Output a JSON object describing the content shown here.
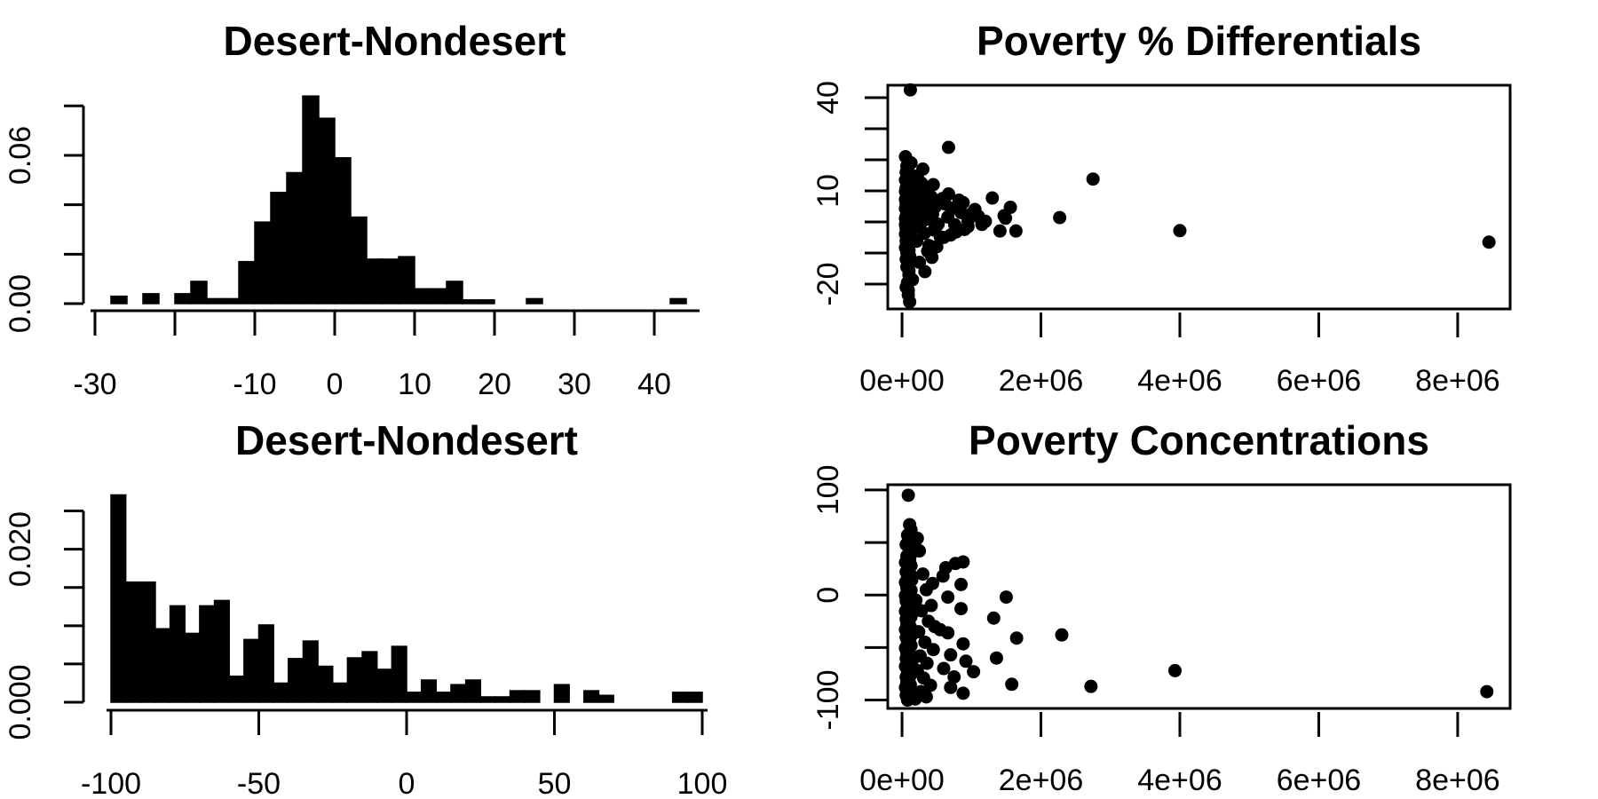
{
  "page": {
    "background": "#ffffff",
    "ink": "#000000"
  },
  "chart_data": [
    {
      "id": "histogram-desert-nondesert-top",
      "type": "bar",
      "title": "Desert-Nondesert",
      "xlabel": "",
      "ylabel": "",
      "bin_start": -30,
      "bin_width": 2,
      "densities": [
        0,
        0.003,
        0,
        0.004,
        0,
        0.004,
        0.009,
        0.002,
        0.002,
        0.017,
        0.033,
        0.045,
        0.053,
        0.084,
        0.075,
        0.059,
        0.035,
        0.018,
        0.018,
        0.019,
        0.006,
        0.006,
        0.009,
        0.0015,
        0.0015,
        0,
        0,
        0.002,
        0,
        0,
        0,
        0,
        0,
        0,
        0,
        0,
        0.002
      ],
      "xlim": [
        -30,
        45
      ],
      "ylim": [
        0,
        0.0855
      ],
      "x_ticks": [
        -30,
        -20,
        -10,
        0,
        10,
        20,
        30,
        40
      ],
      "x_tick_labels": [
        "-30",
        "",
        "-10",
        "0",
        "10",
        "20",
        "30",
        "40"
      ],
      "y_ticks": [
        0,
        0.02,
        0.04,
        0.06,
        0.08
      ],
      "y_tick_labels": [
        "0.00",
        "",
        "",
        "0.06",
        ""
      ],
      "grid": "off"
    },
    {
      "id": "scatter-poverty-pct-differentials",
      "type": "scatter",
      "title": "Poverty % Differentials",
      "xlabel": "",
      "ylabel": "",
      "x_unit": 1000000,
      "xlim": [
        -0.205,
        8.755
      ],
      "ylim": [
        -28,
        44
      ],
      "x_ticks": [
        0,
        2,
        4,
        6,
        8
      ],
      "x_tick_labels": [
        "0e+00",
        "2e+06",
        "4e+06",
        "6e+06",
        "8e+06"
      ],
      "y_ticks": [
        -20,
        -10,
        0,
        10,
        20,
        30,
        40
      ],
      "y_tick_labels": [
        "-20",
        "",
        "",
        "10",
        "",
        "",
        "40"
      ],
      "grid": "off",
      "points": [
        [
          0.12,
          42.5
        ],
        [
          0.67,
          24
        ],
        [
          2.75,
          13.8
        ],
        [
          4.0,
          -2.8
        ],
        [
          8.45,
          -6.5
        ],
        [
          1.3,
          7.7
        ],
        [
          1.47,
          2.0
        ],
        [
          1.56,
          4.7
        ],
        [
          1.49,
          1.2
        ],
        [
          1.41,
          -2.9
        ],
        [
          1.64,
          -2.9
        ],
        [
          2.27,
          1.4
        ],
        [
          0.13,
          19
        ],
        [
          0.3,
          17
        ],
        [
          0.11,
          15.5
        ],
        [
          0.45,
          12
        ],
        [
          0.67,
          9
        ],
        [
          0.58,
          7.5
        ],
        [
          0.88,
          6.2
        ],
        [
          1.05,
          4.0
        ],
        [
          1.15,
          -0.8
        ],
        [
          0.95,
          -1.5
        ],
        [
          0.78,
          -3.2
        ],
        [
          0.6,
          -5.0
        ],
        [
          0.5,
          -8.0
        ],
        [
          0.37,
          -9.4
        ],
        [
          0.43,
          -11.4
        ],
        [
          0.25,
          -13
        ],
        [
          0.33,
          -16
        ],
        [
          0.15,
          -18.6
        ],
        [
          0.09,
          -22
        ],
        [
          0.11,
          -25.7
        ],
        [
          0.1,
          -15.7
        ],
        [
          0.05,
          21
        ],
        [
          0.07,
          18
        ],
        [
          0.06,
          16
        ],
        [
          0.09,
          14.5
        ],
        [
          0.05,
          13.5
        ],
        [
          0.12,
          13
        ],
        [
          0.08,
          12.2
        ],
        [
          0.1,
          11.6
        ],
        [
          0.06,
          11
        ],
        [
          0.14,
          10.4
        ],
        [
          0.05,
          9.8
        ],
        [
          0.09,
          9.2
        ],
        [
          0.12,
          8.6
        ],
        [
          0.07,
          8
        ],
        [
          0.15,
          7.6
        ],
        [
          0.05,
          7.2
        ],
        [
          0.1,
          6.8
        ],
        [
          0.13,
          6.3
        ],
        [
          0.06,
          5.9
        ],
        [
          0.16,
          5.5
        ],
        [
          0.08,
          5.1
        ],
        [
          0.11,
          4.7
        ],
        [
          0.05,
          4.3
        ],
        [
          0.14,
          3.9
        ],
        [
          0.07,
          3.5
        ],
        [
          0.17,
          3.1
        ],
        [
          0.09,
          2.7
        ],
        [
          0.12,
          2.3
        ],
        [
          0.06,
          1.9
        ],
        [
          0.15,
          1.5
        ],
        [
          0.05,
          1.1
        ],
        [
          0.1,
          0.7
        ],
        [
          0.13,
          0.3
        ],
        [
          0.07,
          -0.1
        ],
        [
          0.16,
          -0.5
        ],
        [
          0.05,
          -0.9
        ],
        [
          0.09,
          -1.3
        ],
        [
          0.12,
          -1.7
        ],
        [
          0.06,
          -2.1
        ],
        [
          0.14,
          -2.5
        ],
        [
          0.08,
          -2.9
        ],
        [
          0.11,
          -3.4
        ],
        [
          0.05,
          -3.9
        ],
        [
          0.13,
          -4.4
        ],
        [
          0.07,
          -4.9
        ],
        [
          0.1,
          -5.5
        ],
        [
          0.06,
          -6.1
        ],
        [
          0.12,
          -6.8
        ],
        [
          0.08,
          -7.5
        ],
        [
          0.05,
          -8.3
        ],
        [
          0.1,
          -9.1
        ],
        [
          0.07,
          -10
        ],
        [
          0.11,
          -11
        ],
        [
          0.06,
          -12
        ],
        [
          0.09,
          -13.2
        ],
        [
          0.07,
          -14.5
        ],
        [
          0.1,
          -17
        ],
        [
          0.08,
          -19.5
        ],
        [
          0.06,
          -21
        ],
        [
          0.09,
          -23.5
        ],
        [
          0.22,
          14.8
        ],
        [
          0.28,
          12.5
        ],
        [
          0.35,
          10.5
        ],
        [
          0.24,
          9.7
        ],
        [
          0.31,
          8.9
        ],
        [
          0.42,
          8.1
        ],
        [
          0.21,
          7.3
        ],
        [
          0.38,
          6.5
        ],
        [
          0.27,
          5.7
        ],
        [
          0.48,
          4.9
        ],
        [
          0.23,
          4.1
        ],
        [
          0.34,
          3.3
        ],
        [
          0.44,
          2.5
        ],
        [
          0.2,
          1.7
        ],
        [
          0.4,
          0.9
        ],
        [
          0.29,
          0.1
        ],
        [
          0.52,
          -0.7
        ],
        [
          0.25,
          -1.6
        ],
        [
          0.46,
          -2.6
        ],
        [
          0.32,
          -3.7
        ],
        [
          0.55,
          -4.8
        ],
        [
          0.21,
          -6.2
        ],
        [
          0.39,
          -7.6
        ],
        [
          0.62,
          5.8
        ],
        [
          0.72,
          4.4
        ],
        [
          0.85,
          3.0
        ],
        [
          0.66,
          1.6
        ],
        [
          0.95,
          0.4
        ],
        [
          0.76,
          -0.9
        ],
        [
          1.1,
          1.8
        ],
        [
          0.9,
          -2.4
        ],
        [
          0.7,
          -4.2
        ],
        [
          1.2,
          0.2
        ],
        [
          1.0,
          2.6
        ],
        [
          0.82,
          7.0
        ]
      ]
    },
    {
      "id": "histogram-desert-nondesert-bottom",
      "type": "bar",
      "title": "Desert-Nondesert",
      "xlabel": "",
      "ylabel": "",
      "bin_start": -100,
      "bin_width": 5,
      "densities": [
        0.0271,
        0.0157,
        0.0157,
        0.0096,
        0.0126,
        0.009,
        0.0126,
        0.0133,
        0.0034,
        0.0082,
        0.0101,
        0.0025,
        0.0057,
        0.008,
        0.0047,
        0.0025,
        0.0058,
        0.0066,
        0.0043,
        0.0073,
        0.0013,
        0.0029,
        0.0013,
        0.0023,
        0.0029,
        0.0007,
        0.0007,
        0.0015,
        0.0015,
        0,
        0.0023,
        0,
        0.0015,
        0.0009,
        0,
        0,
        0,
        0,
        0.0013,
        0.0013
      ],
      "xlim": [
        -100,
        100
      ],
      "ylim": [
        0,
        0.0275
      ],
      "x_ticks": [
        -100,
        -50,
        0,
        50,
        100
      ],
      "x_tick_labels": [
        "-100",
        "-50",
        "0",
        "50",
        "100"
      ],
      "y_ticks": [
        0,
        0.005,
        0.01,
        0.015,
        0.02,
        0.025
      ],
      "y_tick_labels": [
        "0.000",
        "",
        "",
        "",
        "0.020",
        ""
      ],
      "grid": "off"
    },
    {
      "id": "scatter-poverty-concentrations",
      "type": "scatter",
      "title": "Poverty Concentrations",
      "xlabel": "",
      "ylabel": "",
      "x_unit": 1000000,
      "xlim": [
        -0.205,
        8.755
      ],
      "ylim": [
        -108,
        105
      ],
      "x_ticks": [
        0,
        2,
        4,
        6,
        8
      ],
      "x_tick_labels": [
        "0e+00",
        "2e+06",
        "4e+06",
        "6e+06",
        "8e+06"
      ],
      "y_ticks": [
        -100,
        -50,
        0,
        50,
        100
      ],
      "y_tick_labels": [
        "-100",
        "",
        "0",
        "",
        "100"
      ],
      "grid": "off",
      "points": [
        [
          0.09,
          95
        ],
        [
          0.11,
          67
        ],
        [
          0.13,
          62
        ],
        [
          8.42,
          -92
        ],
        [
          3.93,
          -72
        ],
        [
          2.72,
          -87
        ],
        [
          2.3,
          -38
        ],
        [
          1.65,
          -41
        ],
        [
          1.58,
          -85
        ],
        [
          1.5,
          -2
        ],
        [
          1.36,
          -60
        ],
        [
          1.32,
          -22
        ],
        [
          1.03,
          -73
        ],
        [
          0.77,
          30
        ],
        [
          0.88,
          31.5
        ],
        [
          0.63,
          26
        ],
        [
          0.59,
          18
        ],
        [
          0.85,
          10
        ],
        [
          0.66,
          -2
        ],
        [
          0.85,
          -13
        ],
        [
          0.55,
          -33
        ],
        [
          0.66,
          -36
        ],
        [
          0.88,
          -46.5
        ],
        [
          0.7,
          -57
        ],
        [
          0.92,
          -63
        ],
        [
          0.7,
          -88
        ],
        [
          0.88,
          -93.5
        ],
        [
          0.6,
          -70
        ],
        [
          0.75,
          -78
        ],
        [
          0.22,
          54
        ],
        [
          0.18,
          49
        ],
        [
          0.25,
          42
        ],
        [
          0.44,
          11
        ],
        [
          0.3,
          20
        ],
        [
          0.35,
          5
        ],
        [
          0.2,
          -5
        ],
        [
          0.28,
          -15
        ],
        [
          0.38,
          -25
        ],
        [
          0.24,
          -35
        ],
        [
          0.33,
          -45
        ],
        [
          0.45,
          -52
        ],
        [
          0.26,
          -58
        ],
        [
          0.36,
          -65
        ],
        [
          0.22,
          -72
        ],
        [
          0.31,
          -79
        ],
        [
          0.41,
          -86
        ],
        [
          0.27,
          -92
        ],
        [
          0.35,
          -97
        ],
        [
          0.19,
          -99
        ],
        [
          0.42,
          -10
        ],
        [
          0.47,
          -30
        ],
        [
          0.08,
          57
        ],
        [
          0.12,
          52
        ],
        [
          0.06,
          48
        ],
        [
          0.1,
          44
        ],
        [
          0.14,
          40
        ],
        [
          0.07,
          37
        ],
        [
          0.11,
          34
        ],
        [
          0.05,
          31
        ],
        [
          0.13,
          28
        ],
        [
          0.09,
          25
        ],
        [
          0.06,
          22
        ],
        [
          0.12,
          19.5
        ],
        [
          0.08,
          17
        ],
        [
          0.14,
          14.5
        ],
        [
          0.05,
          12
        ],
        [
          0.1,
          9.5
        ],
        [
          0.07,
          7
        ],
        [
          0.13,
          4.5
        ],
        [
          0.09,
          2
        ],
        [
          0.05,
          -0.5
        ],
        [
          0.11,
          -3
        ],
        [
          0.06,
          -5.5
        ],
        [
          0.14,
          -8
        ],
        [
          0.08,
          -10.5
        ],
        [
          0.12,
          -13
        ],
        [
          0.05,
          -15.5
        ],
        [
          0.09,
          -18
        ],
        [
          0.13,
          -20.5
        ],
        [
          0.06,
          -23
        ],
        [
          0.1,
          -25.5
        ],
        [
          0.07,
          -28
        ],
        [
          0.12,
          -30.5
        ],
        [
          0.05,
          -33
        ],
        [
          0.09,
          -35.5
        ],
        [
          0.14,
          -38
        ],
        [
          0.06,
          -40.5
        ],
        [
          0.11,
          -43
        ],
        [
          0.08,
          -45.5
        ],
        [
          0.13,
          -48
        ],
        [
          0.05,
          -50.5
        ],
        [
          0.1,
          -53
        ],
        [
          0.07,
          -55.5
        ],
        [
          0.12,
          -58
        ],
        [
          0.06,
          -60.5
        ],
        [
          0.09,
          -63
        ],
        [
          0.14,
          -65.5
        ],
        [
          0.05,
          -68
        ],
        [
          0.11,
          -70.5
        ],
        [
          0.08,
          -73
        ],
        [
          0.13,
          -75.5
        ],
        [
          0.06,
          -78
        ],
        [
          0.1,
          -80.5
        ],
        [
          0.07,
          -83
        ],
        [
          0.12,
          -85.5
        ],
        [
          0.05,
          -88
        ],
        [
          0.09,
          -90.5
        ],
        [
          0.13,
          -93
        ],
        [
          0.06,
          -95.5
        ],
        [
          0.1,
          -98
        ],
        [
          0.08,
          -100
        ]
      ]
    }
  ]
}
